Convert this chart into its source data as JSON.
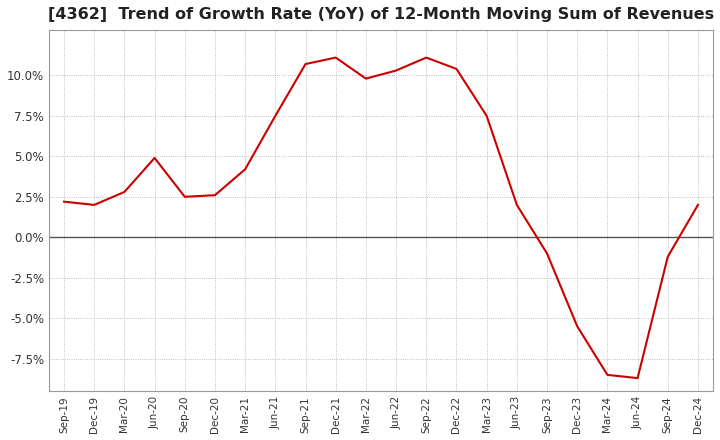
{
  "title": "[4362]  Trend of Growth Rate (YoY) of 12-Month Moving Sum of Revenues",
  "title_fontsize": 11.5,
  "line_color": "#cc0000",
  "background_color": "#ffffff",
  "grid_color": "#aaaaaa",
  "zero_line_color": "#555555",
  "ylim": [
    -9.5,
    12.8
  ],
  "yticks": [
    -7.5,
    -5.0,
    -2.5,
    0.0,
    2.5,
    5.0,
    7.5,
    10.0
  ],
  "dates": [
    "Sep-19",
    "Dec-19",
    "Mar-20",
    "Jun-20",
    "Sep-20",
    "Dec-20",
    "Mar-21",
    "Jun-21",
    "Sep-21",
    "Dec-21",
    "Mar-22",
    "Jun-22",
    "Sep-22",
    "Dec-22",
    "Mar-23",
    "Jun-23",
    "Sep-23",
    "Dec-23",
    "Mar-24",
    "Jun-24",
    "Sep-24",
    "Dec-24"
  ],
  "values": [
    2.2,
    2.0,
    2.8,
    4.9,
    2.5,
    2.6,
    4.2,
    7.5,
    10.7,
    11.1,
    9.8,
    10.3,
    11.1,
    10.4,
    7.5,
    2.0,
    -1.0,
    -5.5,
    -8.5,
    -8.7,
    -1.2,
    2.0
  ]
}
